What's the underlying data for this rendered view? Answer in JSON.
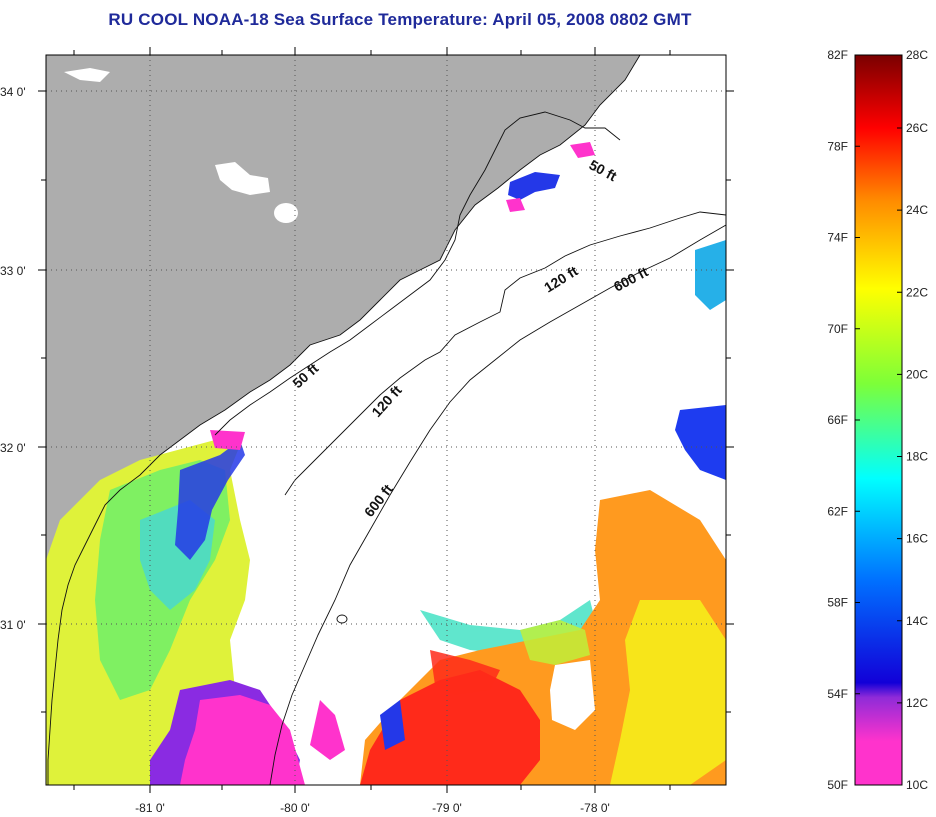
{
  "title": "RU COOL  NOAA-18  Sea Surface Temperature:  April 05, 2008 0802 GMT",
  "map": {
    "lat_labels": [
      "34 0'",
      "33 0'",
      "32 0'",
      "31 0'"
    ],
    "lon_labels": [
      "-81 0'",
      "-80 0'",
      "-79 0'",
      "-78 0'"
    ],
    "contours": [
      "50 ft",
      "120 ft",
      "600 ft",
      "50 ft",
      "120 ft",
      "600 ft"
    ],
    "colors": {
      "land": "#adadad",
      "ocean": "#ffffff",
      "grid": "#555555"
    }
  },
  "colorbar": {
    "fahrenheit": [
      "82F",
      "78F",
      "74F",
      "70F",
      "66F",
      "62F",
      "58F",
      "54F",
      "50F"
    ],
    "celsius": [
      "28C",
      "26C",
      "24C",
      "22C",
      "20C",
      "18C",
      "16C",
      "14C",
      "12C",
      "10C"
    ],
    "colors": [
      "#7a0000",
      "#ff0000",
      "#ff8c00",
      "#ffff00",
      "#7dff38",
      "#00ffff",
      "#0070ff",
      "#0000e6",
      "#8f2bd8",
      "#ff33cc"
    ]
  }
}
